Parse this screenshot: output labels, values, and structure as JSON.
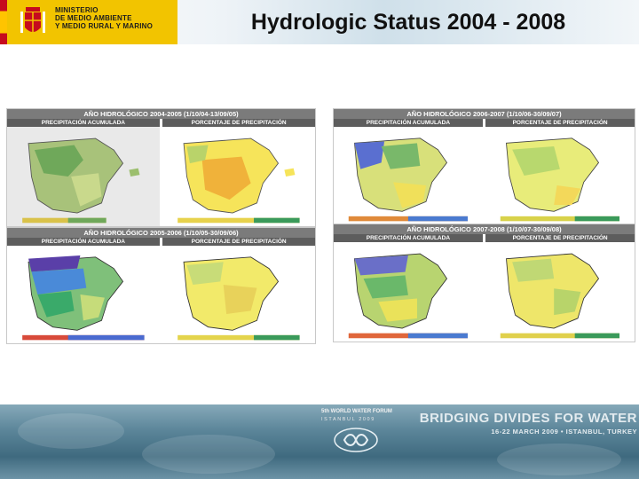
{
  "header": {
    "ministry_lines": [
      "MINISTERIO",
      "DE MEDIO AMBIENTE",
      "Y MEDIO RURAL Y MARINO"
    ],
    "title": "Hydrologic Status 2004 - 2008"
  },
  "panels": [
    {
      "heading": "AÑO HIDROLÓGICO 2004-2005 (1/10/04-13/09/05)",
      "left_label": "PRECIPITACIÓN ACUMULADA",
      "right_label": "PORCENTAJE DE PRECIPITACIÓN"
    },
    {
      "heading": "AÑO HIDROLÓGICO 2006-2007 (1/10/06-30/09/07)",
      "left_label": "PRECIPITACIÓN ACUMULADA",
      "right_label": "PORCENTAJE DE PRECIPITACIÓN"
    },
    {
      "heading": "AÑO HIDROLÓGICO 2005-2006 (1/10/05-30/09/06)",
      "left_label": "PRECIPITACIÓN ACUMULADA",
      "right_label": "PORCENTAJE DE PRECIPITACIÓN"
    },
    {
      "heading": "AÑO HIDROLÓGICO 2007-2008 (1/10/07-30/09/08)",
      "left_label": "PRECIPITACIÓN ACUMULADA",
      "right_label": "PORCENTAJE DE PRECIPITACIÓN"
    }
  ],
  "footer": {
    "forum_name": "5th WORLD WATER FORUM",
    "forum_city": "ISTANBUL 2009",
    "slogan": "BRIDGING DIVIDES FOR WATER",
    "event": "16-22 MARCH 2009 • ISTANBUL, TURKEY"
  },
  "colors": {
    "accent_yellow": "#f2c400",
    "panel_head": "#7b7b7b",
    "footer_water": "#4f7a8e"
  }
}
